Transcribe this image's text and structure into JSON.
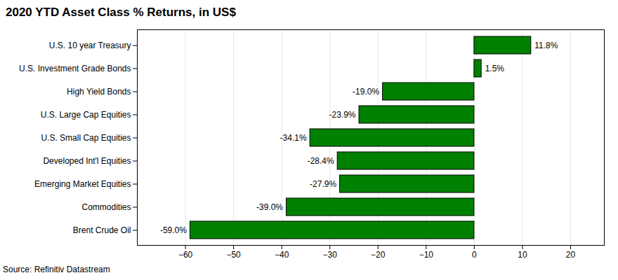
{
  "chart_data": {
    "type": "bar",
    "orientation": "horizontal",
    "title": "2020 YTD Asset Class % Returns, in US$",
    "caption": "Source: Refinitiv Datastream",
    "categories": [
      "U.S. 10 year Treasury",
      "U.S. Investment Grade Bonds",
      "High Yield Bonds",
      "U.S. Large Cap Equities",
      "U.S. Small Cap Equities",
      "Developed Int'l Equities",
      "Emerging Market Equities",
      "Commodities",
      "Brent Crude Oil"
    ],
    "values": [
      11.8,
      1.5,
      -19.0,
      -23.9,
      -34.1,
      -28.4,
      -27.9,
      -39.0,
      -59.0
    ],
    "value_labels": [
      "11.8%",
      "1.5%",
      "-19.0%",
      "-23.9%",
      "-34.1%",
      "-28.4%",
      "-27.9%",
      "-39.0%",
      "-59.0%"
    ],
    "color": "#008000",
    "xlim": [
      -70,
      27
    ],
    "xticks": [
      -60,
      -50,
      -40,
      -30,
      -20,
      -10,
      0,
      10,
      20
    ],
    "grid": true,
    "data_labels": true
  }
}
